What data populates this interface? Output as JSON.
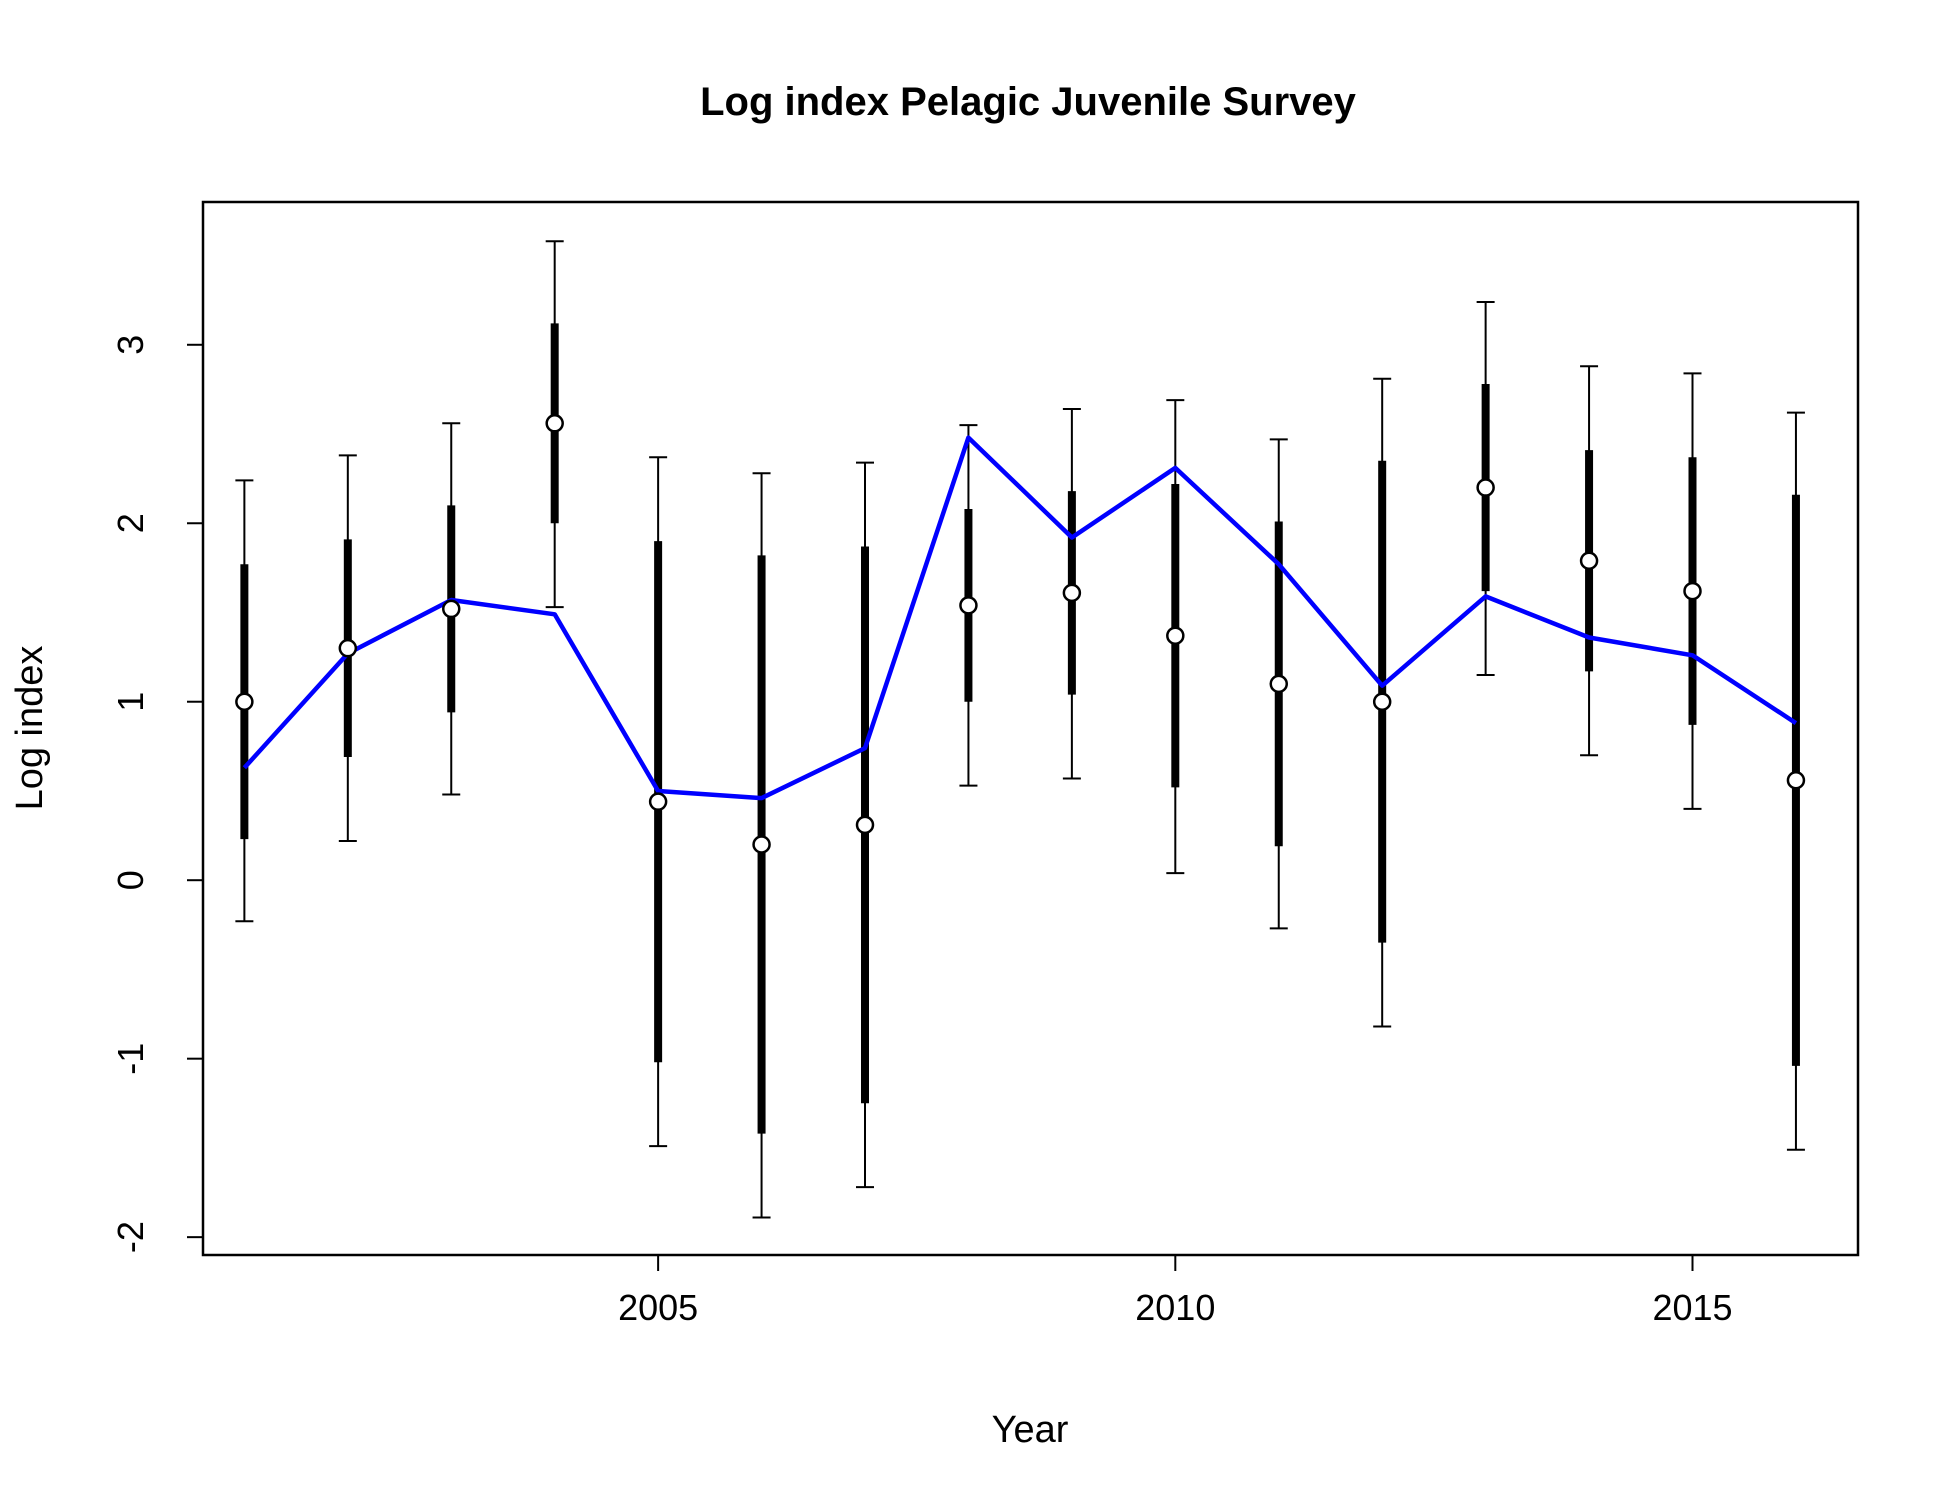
{
  "chart_data": {
    "type": "line",
    "title": "Log index Pelagic Juvenile Survey",
    "xlabel": "Year",
    "ylabel": "Log index",
    "xlim": [
      2000.6,
      2016.6
    ],
    "ylim": [
      -2.1,
      3.8
    ],
    "x_ticks": [
      2005,
      2010,
      2015
    ],
    "y_ticks": [
      -2,
      -1,
      0,
      1,
      2,
      3
    ],
    "grid": false,
    "legend": "none",
    "colors": {
      "fit_line": "#0000ff",
      "error_bars": "#000000",
      "points_fill": "#ffffff"
    },
    "years": [
      2001,
      2002,
      2003,
      2004,
      2005,
      2006,
      2007,
      2008,
      2009,
      2010,
      2011,
      2012,
      2013,
      2014,
      2015,
      2016
    ],
    "series": [
      {
        "values": [
          1.0,
          1.3,
          1.52,
          2.56,
          0.44,
          0.2,
          0.31,
          1.54,
          1.61,
          1.37,
          1.1,
          1.0,
          2.2,
          1.79,
          1.62,
          0.56
        ]
      },
      {
        "values": [
          0.63,
          1.27,
          1.57,
          1.49,
          0.5,
          0.46,
          0.74,
          2.48,
          1.92,
          2.31,
          1.77,
          1.09,
          1.59,
          1.36,
          1.26,
          0.88
        ]
      },
      {
        "values": [
          [
            0.23,
            1.77
          ],
          [
            0.69,
            1.91
          ],
          [
            0.94,
            2.1
          ],
          [
            2.0,
            3.12
          ],
          [
            -1.02,
            1.9
          ],
          [
            -1.42,
            1.82
          ],
          [
            -1.25,
            1.87
          ],
          [
            1.0,
            2.08
          ],
          [
            1.04,
            2.18
          ],
          [
            0.52,
            2.22
          ],
          [
            0.19,
            2.01
          ],
          [
            -0.35,
            2.35
          ],
          [
            1.62,
            2.78
          ],
          [
            1.17,
            2.41
          ],
          [
            0.87,
            2.37
          ],
          [
            -1.04,
            2.16
          ]
        ]
      },
      {
        "values": [
          [
            -0.23,
            2.24
          ],
          [
            0.22,
            2.38
          ],
          [
            0.48,
            2.56
          ],
          [
            1.53,
            3.58
          ],
          [
            -1.49,
            2.37
          ],
          [
            -1.89,
            2.28
          ],
          [
            -1.72,
            2.34
          ],
          [
            0.53,
            2.55
          ],
          [
            0.57,
            2.64
          ],
          [
            0.04,
            2.69
          ],
          [
            -0.27,
            2.47
          ],
          [
            -0.82,
            2.81
          ],
          [
            1.15,
            3.24
          ],
          [
            0.7,
            2.88
          ],
          [
            0.4,
            2.84
          ],
          [
            -1.51,
            2.62
          ]
        ]
      }
    ]
  }
}
